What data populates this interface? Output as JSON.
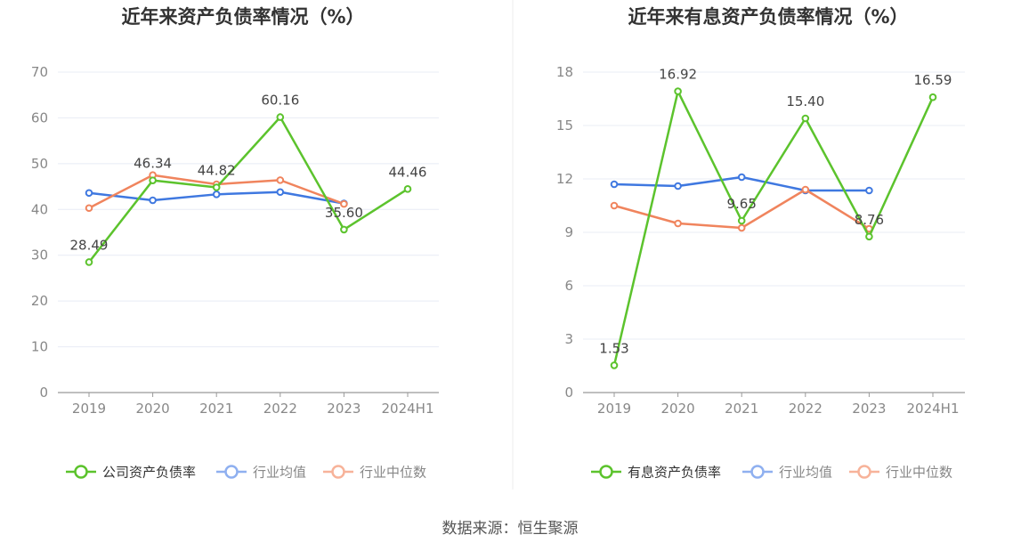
{
  "chart_data": [
    {
      "type": "line",
      "title": "近年来资产负债率情况（%）",
      "categories": [
        "2019",
        "2020",
        "2021",
        "2022",
        "2023",
        "2024H1"
      ],
      "ylim": [
        0,
        70
      ],
      "yticks": [
        "0",
        "10",
        "20",
        "30",
        "40",
        "50",
        "60",
        "70"
      ],
      "grid": true,
      "legend": "bottom",
      "series": [
        {
          "name": "公司资产负债率",
          "color": "#5cc32d",
          "values": [
            28.49,
            46.34,
            44.82,
            60.16,
            35.6,
            44.46
          ],
          "labels": [
            "28.49",
            "46.34",
            "44.82",
            "60.16",
            "35.60",
            "44.46"
          ]
        },
        {
          "name": "行业均值",
          "color": "#3f78e0",
          "values": [
            43.6,
            42.0,
            43.3,
            43.8,
            41.3,
            null
          ]
        },
        {
          "name": "行业中位数",
          "color": "#f0845d",
          "values": [
            40.3,
            47.5,
            45.5,
            46.4,
            41.2,
            null
          ]
        }
      ]
    },
    {
      "type": "line",
      "title": "近年来有息资产负债率情况（%）",
      "categories": [
        "2019",
        "2020",
        "2021",
        "2022",
        "2023",
        "2024H1"
      ],
      "ylim": [
        0,
        18
      ],
      "yticks": [
        "0",
        "3",
        "6",
        "9",
        "12",
        "15",
        "18"
      ],
      "grid": true,
      "legend": "bottom",
      "series": [
        {
          "name": "有息资产负债率",
          "color": "#5cc32d",
          "values": [
            1.53,
            16.92,
            9.65,
            15.4,
            8.76,
            16.59
          ],
          "labels": [
            "1.53",
            "16.92",
            "9.65",
            "15.40",
            "8.76",
            "16.59"
          ]
        },
        {
          "name": "行业均值",
          "color": "#3f78e0",
          "values": [
            11.7,
            11.6,
            12.1,
            11.35,
            11.35,
            null
          ]
        },
        {
          "name": "行业中位数",
          "color": "#f0845d",
          "values": [
            10.5,
            9.5,
            9.25,
            11.4,
            9.2,
            null
          ]
        }
      ]
    }
  ],
  "source": "数据来源：恒生聚源",
  "legend_colors_faded": [
    "#5cc32d",
    "#8fb0f0",
    "#f7b39a"
  ]
}
